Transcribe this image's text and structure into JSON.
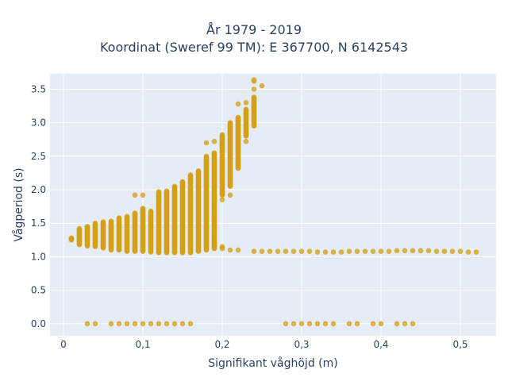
{
  "chart_data": {
    "type": "scatter",
    "title": "År 1979 - 2019",
    "subtitle": "Koordinat (Sweref 99 TM): E 367700, N 6142543",
    "xlabel": "Signifikant våghöjd (m)",
    "ylabel": "Vågperiod (s)",
    "xlim": [
      -0.017,
      0.545
    ],
    "ylim": [
      -0.18,
      3.73
    ],
    "x_ticks": [
      0,
      0.1,
      0.2,
      0.3,
      0.4,
      0.5
    ],
    "x_tick_labels": [
      "0",
      "0,1",
      "0,2",
      "0,3",
      "0,4",
      "0,5"
    ],
    "y_ticks": [
      0,
      0.5,
      1,
      1.5,
      2,
      2.5,
      3,
      3.5
    ],
    "y_tick_labels": [
      "0.0",
      "0.5",
      "1.0",
      "1.5",
      "2.0",
      "2.5",
      "3.0",
      "3.5"
    ],
    "grid": true,
    "legend": "none",
    "colors": {
      "marker": "#D4A017",
      "plot_bg": "#E5ECF6",
      "grid": "#FFFFFF",
      "text": "#2A3F5F"
    },
    "columns": [
      {
        "x": 0.01,
        "ymin": 1.25,
        "ymax": 1.28
      },
      {
        "x": 0.02,
        "ymin": 1.18,
        "ymax": 1.42
      },
      {
        "x": 0.03,
        "ymin": 1.16,
        "ymax": 1.45
      },
      {
        "x": 0.04,
        "ymin": 1.15,
        "ymax": 1.5
      },
      {
        "x": 0.05,
        "ymin": 1.13,
        "ymax": 1.52
      },
      {
        "x": 0.06,
        "ymin": 1.1,
        "ymax": 1.53
      },
      {
        "x": 0.07,
        "ymin": 1.1,
        "ymax": 1.58
      },
      {
        "x": 0.08,
        "ymin": 1.08,
        "ymax": 1.6
      },
      {
        "x": 0.09,
        "ymin": 1.08,
        "ymax": 1.65
      },
      {
        "x": 0.1,
        "ymin": 1.08,
        "ymax": 1.72
      },
      {
        "x": 0.11,
        "ymin": 1.07,
        "ymax": 1.68
      },
      {
        "x": 0.12,
        "ymin": 1.06,
        "ymax": 1.97
      },
      {
        "x": 0.13,
        "ymin": 1.06,
        "ymax": 1.98
      },
      {
        "x": 0.14,
        "ymin": 1.06,
        "ymax": 2.05
      },
      {
        "x": 0.15,
        "ymin": 1.06,
        "ymax": 2.12
      },
      {
        "x": 0.16,
        "ymin": 1.06,
        "ymax": 2.22
      },
      {
        "x": 0.17,
        "ymin": 1.08,
        "ymax": 2.28
      },
      {
        "x": 0.18,
        "ymin": 1.1,
        "ymax": 2.5
      },
      {
        "x": 0.19,
        "ymin": 1.12,
        "ymax": 2.55
      },
      {
        "x": 0.2,
        "ymin": 1.92,
        "ymax": 2.82
      },
      {
        "x": 0.21,
        "ymin": 2.05,
        "ymax": 3.0
      },
      {
        "x": 0.22,
        "ymin": 2.32,
        "ymax": 3.08
      },
      {
        "x": 0.23,
        "ymin": 2.8,
        "ymax": 3.2
      },
      {
        "x": 0.24,
        "ymin": 2.95,
        "ymax": 3.38
      }
    ],
    "extra_points": [
      {
        "x": 0.09,
        "y": 1.92
      },
      {
        "x": 0.1,
        "y": 1.92
      },
      {
        "x": 0.18,
        "y": 2.7
      },
      {
        "x": 0.19,
        "y": 2.72
      },
      {
        "x": 0.19,
        "y": 1.8
      },
      {
        "x": 0.19,
        "y": 1.6
      },
      {
        "x": 0.19,
        "y": 1.52
      },
      {
        "x": 0.19,
        "y": 1.42
      },
      {
        "x": 0.19,
        "y": 1.28
      },
      {
        "x": 0.19,
        "y": 1.2
      },
      {
        "x": 0.2,
        "y": 1.85
      },
      {
        "x": 0.2,
        "y": 1.15
      },
      {
        "x": 0.2,
        "y": 1.12
      },
      {
        "x": 0.21,
        "y": 1.92
      },
      {
        "x": 0.21,
        "y": 1.1
      },
      {
        "x": 0.22,
        "y": 3.28
      },
      {
        "x": 0.22,
        "y": 1.1
      },
      {
        "x": 0.23,
        "y": 2.72
      },
      {
        "x": 0.23,
        "y": 3.3
      },
      {
        "x": 0.24,
        "y": 3.5
      },
      {
        "x": 0.24,
        "y": 3.62
      },
      {
        "x": 0.24,
        "y": 3.64
      },
      {
        "x": 0.25,
        "y": 3.55
      }
    ],
    "tail_points": [
      {
        "x": 0.24,
        "y": 1.08
      },
      {
        "x": 0.25,
        "y": 1.08
      },
      {
        "x": 0.26,
        "y": 1.08
      },
      {
        "x": 0.27,
        "y": 1.08
      },
      {
        "x": 0.28,
        "y": 1.08
      },
      {
        "x": 0.29,
        "y": 1.08
      },
      {
        "x": 0.3,
        "y": 1.08
      },
      {
        "x": 0.31,
        "y": 1.08
      },
      {
        "x": 0.32,
        "y": 1.07
      },
      {
        "x": 0.33,
        "y": 1.07
      },
      {
        "x": 0.34,
        "y": 1.07
      },
      {
        "x": 0.35,
        "y": 1.07
      },
      {
        "x": 0.36,
        "y": 1.08
      },
      {
        "x": 0.37,
        "y": 1.08
      },
      {
        "x": 0.38,
        "y": 1.08
      },
      {
        "x": 0.39,
        "y": 1.08
      },
      {
        "x": 0.4,
        "y": 1.08
      },
      {
        "x": 0.41,
        "y": 1.08
      },
      {
        "x": 0.42,
        "y": 1.09
      },
      {
        "x": 0.43,
        "y": 1.09
      },
      {
        "x": 0.44,
        "y": 1.09
      },
      {
        "x": 0.45,
        "y": 1.09
      },
      {
        "x": 0.46,
        "y": 1.09
      },
      {
        "x": 0.47,
        "y": 1.08
      },
      {
        "x": 0.48,
        "y": 1.08
      },
      {
        "x": 0.49,
        "y": 1.08
      },
      {
        "x": 0.5,
        "y": 1.08
      },
      {
        "x": 0.51,
        "y": 1.07
      },
      {
        "x": 0.52,
        "y": 1.07
      }
    ],
    "zero_points_x": [
      0.03,
      0.04,
      0.06,
      0.07,
      0.08,
      0.09,
      0.1,
      0.11,
      0.12,
      0.13,
      0.14,
      0.15,
      0.16,
      0.28,
      0.29,
      0.3,
      0.31,
      0.32,
      0.33,
      0.34,
      0.36,
      0.37,
      0.39,
      0.4,
      0.42,
      0.43,
      0.44
    ]
  }
}
